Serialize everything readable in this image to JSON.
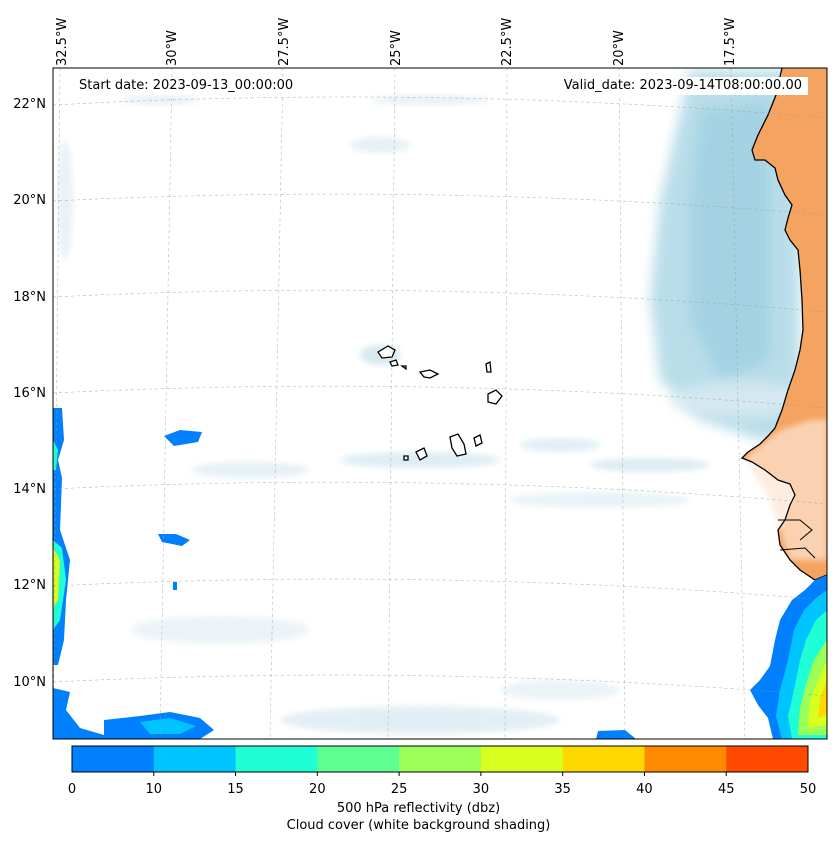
{
  "header": {
    "start_date": "Start date: 2023-09-13_00:00:00",
    "valid_date": "Valid_date: 2023-09-14T08:00:00.00"
  },
  "axes": {
    "lon_labels": [
      "32.5°W",
      "30°W",
      "27.5°W",
      "25°W",
      "22.5°W",
      "20°W",
      "17.5°W"
    ],
    "lat_labels": [
      "22°N",
      "20°N",
      "18°N",
      "16°N",
      "14°N",
      "12°N",
      "10°N"
    ]
  },
  "colorbar": {
    "ticks": [
      "0",
      "10",
      "15",
      "20",
      "25",
      "30",
      "35",
      "40",
      "45",
      "50"
    ],
    "colors": [
      "#0080ff",
      "#00c4ff",
      "#1effd6",
      "#5cff90",
      "#9cff58",
      "#d8ff1e",
      "#ffd800",
      "#ff8a00",
      "#ff4a00"
    ],
    "label_line1": "500 hPa reflectivity (dbz)",
    "label_line2": "Cloud cover (white background shading)"
  },
  "map_colors": {
    "land": "#f4a460",
    "cloud": "#add8e6",
    "coast": "#000000"
  }
}
